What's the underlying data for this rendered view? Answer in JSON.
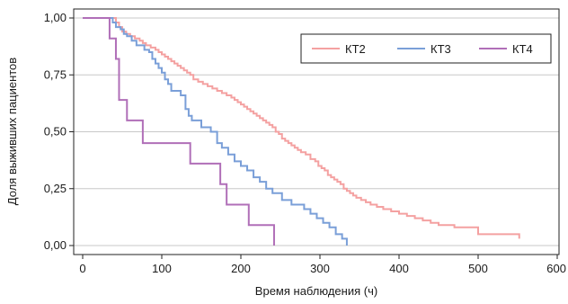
{
  "chart_data": {
    "type": "line",
    "step": true,
    "xlabel": "Время наблюдения (ч)",
    "ylabel": "Доля выживших пациентов",
    "xlim": [
      0,
      600
    ],
    "ylim": [
      0,
      1
    ],
    "x_ticks": [
      0,
      100,
      200,
      300,
      400,
      500,
      600
    ],
    "x_tick_labels": [
      "0",
      "100",
      "200",
      "300",
      "400",
      "500",
      "600"
    ],
    "y_ticks": [
      0,
      0.25,
      0.5,
      0.75,
      1.0
    ],
    "y_tick_labels": [
      "0,00",
      "0,25",
      "0,50",
      "0,75",
      "1,00"
    ],
    "grid": "horizontal",
    "legend_position": "top-right",
    "series": [
      {
        "name": "КТ2",
        "color": "#f4a1a1",
        "points": [
          [
            0,
            1.0
          ],
          [
            40,
            1.0
          ],
          [
            42,
            0.98
          ],
          [
            46,
            0.96
          ],
          [
            50,
            0.94
          ],
          [
            55,
            0.93
          ],
          [
            60,
            0.92
          ],
          [
            66,
            0.91
          ],
          [
            72,
            0.9
          ],
          [
            76,
            0.89
          ],
          [
            80,
            0.88
          ],
          [
            86,
            0.87
          ],
          [
            92,
            0.86
          ],
          [
            96,
            0.85
          ],
          [
            100,
            0.84
          ],
          [
            104,
            0.83
          ],
          [
            108,
            0.82
          ],
          [
            112,
            0.81
          ],
          [
            116,
            0.8
          ],
          [
            120,
            0.79
          ],
          [
            124,
            0.78
          ],
          [
            128,
            0.77
          ],
          [
            132,
            0.76
          ],
          [
            136,
            0.75
          ],
          [
            140,
            0.73
          ],
          [
            146,
            0.72
          ],
          [
            152,
            0.71
          ],
          [
            158,
            0.7
          ],
          [
            164,
            0.69
          ],
          [
            170,
            0.68
          ],
          [
            176,
            0.67
          ],
          [
            182,
            0.66
          ],
          [
            188,
            0.65
          ],
          [
            192,
            0.64
          ],
          [
            196,
            0.63
          ],
          [
            200,
            0.62
          ],
          [
            204,
            0.61
          ],
          [
            208,
            0.6
          ],
          [
            212,
            0.59
          ],
          [
            216,
            0.58
          ],
          [
            220,
            0.57
          ],
          [
            224,
            0.56
          ],
          [
            228,
            0.55
          ],
          [
            232,
            0.54
          ],
          [
            236,
            0.53
          ],
          [
            240,
            0.52
          ],
          [
            244,
            0.5
          ],
          [
            248,
            0.49
          ],
          [
            252,
            0.47
          ],
          [
            256,
            0.46
          ],
          [
            260,
            0.45
          ],
          [
            264,
            0.44
          ],
          [
            268,
            0.43
          ],
          [
            272,
            0.42
          ],
          [
            276,
            0.41
          ],
          [
            282,
            0.4
          ],
          [
            288,
            0.38
          ],
          [
            294,
            0.37
          ],
          [
            298,
            0.35
          ],
          [
            302,
            0.34
          ],
          [
            306,
            0.33
          ],
          [
            310,
            0.31
          ],
          [
            314,
            0.3
          ],
          [
            318,
            0.29
          ],
          [
            322,
            0.28
          ],
          [
            326,
            0.27
          ],
          [
            330,
            0.25
          ],
          [
            334,
            0.24
          ],
          [
            338,
            0.23
          ],
          [
            342,
            0.22
          ],
          [
            346,
            0.21
          ],
          [
            352,
            0.2
          ],
          [
            358,
            0.19
          ],
          [
            364,
            0.18
          ],
          [
            372,
            0.17
          ],
          [
            380,
            0.16
          ],
          [
            390,
            0.15
          ],
          [
            400,
            0.14
          ],
          [
            410,
            0.13
          ],
          [
            420,
            0.12
          ],
          [
            430,
            0.11
          ],
          [
            440,
            0.1
          ],
          [
            450,
            0.09
          ],
          [
            470,
            0.08
          ],
          [
            500,
            0.05
          ],
          [
            520,
            0.05
          ],
          [
            552,
            0.05
          ],
          [
            552,
            0.03
          ]
        ]
      },
      {
        "name": "КТ3",
        "color": "#7a9fd8",
        "points": [
          [
            0,
            1.0
          ],
          [
            36,
            1.0
          ],
          [
            38,
            0.98
          ],
          [
            42,
            0.96
          ],
          [
            48,
            0.95
          ],
          [
            52,
            0.93
          ],
          [
            56,
            0.92
          ],
          [
            62,
            0.9
          ],
          [
            68,
            0.88
          ],
          [
            78,
            0.86
          ],
          [
            84,
            0.85
          ],
          [
            88,
            0.82
          ],
          [
            92,
            0.8
          ],
          [
            96,
            0.78
          ],
          [
            100,
            0.76
          ],
          [
            104,
            0.73
          ],
          [
            108,
            0.71
          ],
          [
            112,
            0.68
          ],
          [
            124,
            0.66
          ],
          [
            130,
            0.6
          ],
          [
            134,
            0.57
          ],
          [
            138,
            0.55
          ],
          [
            150,
            0.52
          ],
          [
            162,
            0.5
          ],
          [
            170,
            0.45
          ],
          [
            176,
            0.43
          ],
          [
            184,
            0.4
          ],
          [
            192,
            0.37
          ],
          [
            200,
            0.35
          ],
          [
            208,
            0.33
          ],
          [
            216,
            0.3
          ],
          [
            224,
            0.28
          ],
          [
            232,
            0.25
          ],
          [
            240,
            0.23
          ],
          [
            252,
            0.2
          ],
          [
            264,
            0.18
          ],
          [
            280,
            0.16
          ],
          [
            288,
            0.14
          ],
          [
            296,
            0.12
          ],
          [
            304,
            0.1
          ],
          [
            312,
            0.08
          ],
          [
            320,
            0.05
          ],
          [
            328,
            0.03
          ],
          [
            334,
            0.0
          ]
        ]
      },
      {
        "name": "КТ4",
        "color": "#b06fb8",
        "points": [
          [
            0,
            1.0
          ],
          [
            28,
            1.0
          ],
          [
            34,
            0.91
          ],
          [
            42,
            0.82
          ],
          [
            46,
            0.64
          ],
          [
            56,
            0.55
          ],
          [
            76,
            0.45
          ],
          [
            136,
            0.36
          ],
          [
            174,
            0.27
          ],
          [
            182,
            0.18
          ],
          [
            210,
            0.09
          ],
          [
            242,
            0.0
          ]
        ]
      }
    ]
  }
}
